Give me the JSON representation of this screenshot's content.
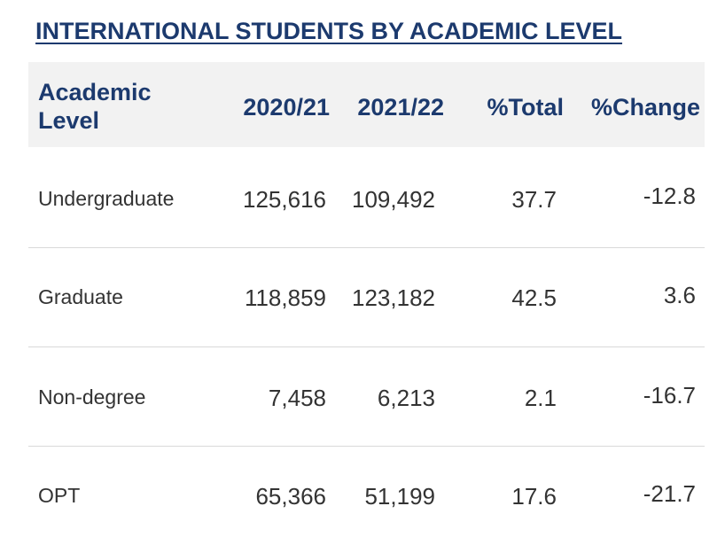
{
  "chart_data": {
    "type": "table",
    "title": "INTERNATIONAL STUDENTS BY ACADEMIC LEVEL",
    "columns": [
      "Academic Level",
      "2020/21",
      "2021/22",
      "%Total",
      "%Change"
    ],
    "rows": [
      {
        "level": "Undergraduate",
        "y2020_21": "125,616",
        "y2021_22": "109,492",
        "pct_total": "37.7",
        "pct_change": "-12.8"
      },
      {
        "level": "Graduate",
        "y2020_21": "118,859",
        "y2021_22": "123,182",
        "pct_total": "42.5",
        "pct_change": "3.6"
      },
      {
        "level": "Non-degree",
        "y2020_21": "7,458",
        "y2021_22": "6,213",
        "pct_total": "2.1",
        "pct_change": "-16.7"
      },
      {
        "level": "OPT",
        "y2020_21": "65,366",
        "y2021_22": "51,199",
        "pct_total": "17.6",
        "pct_change": "-21.7"
      }
    ]
  }
}
